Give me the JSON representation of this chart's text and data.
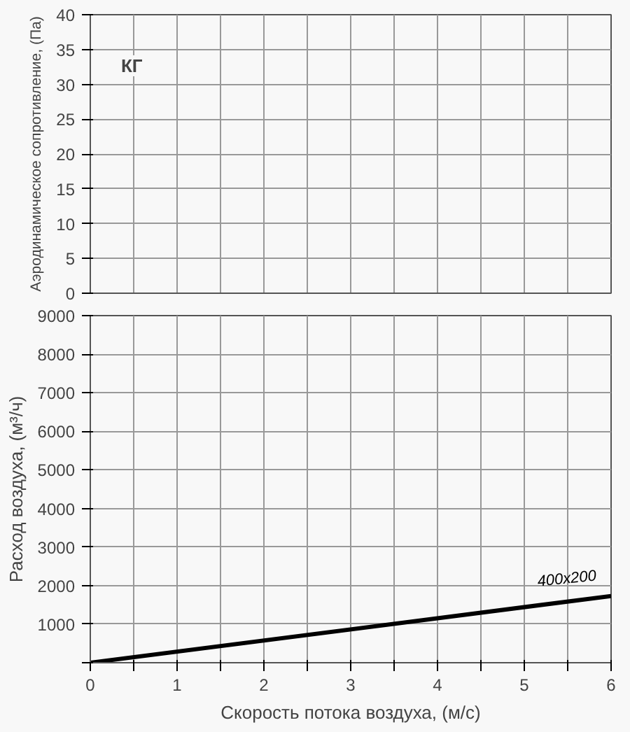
{
  "chart_data": [
    {
      "type": "line",
      "ylabel": "Аэродинамическое сопротивление, (Па)",
      "annotations": [
        "КГ"
      ],
      "xlim": [
        0,
        6
      ],
      "xticks": [
        0,
        {
          "value": 0.5,
          "label": null
        },
        1,
        {
          "value": 1.5,
          "label": null
        },
        2,
        {
          "value": 2.5,
          "label": null
        },
        3,
        {
          "value": 3.5,
          "label": null
        },
        4,
        {
          "value": 4.5,
          "label": null
        },
        5,
        {
          "value": 5.5,
          "label": null
        },
        6
      ],
      "ylim": [
        0,
        40
      ],
      "yticks": [
        0,
        5,
        10,
        15,
        20,
        25,
        30,
        35,
        40
      ],
      "grid": true,
      "tick_labels": "y"
    },
    {
      "type": "line",
      "xlabel": "Скорость потока воздуха, (м/с)",
      "ylabel": "Расход воздуха, (м³/ч)",
      "x": [
        0,
        6
      ],
      "series": [
        {
          "name": "400x200",
          "color": "#000000",
          "values": [
            0,
            1730
          ]
        }
      ],
      "xlim": [
        0,
        6
      ],
      "xticks": [
        0,
        {
          "value": 0.5,
          "label": null
        },
        1,
        {
          "value": 1.5,
          "label": null
        },
        2,
        {
          "value": 2.5,
          "label": null
        },
        3,
        {
          "value": 3.5,
          "label": null
        },
        4,
        {
          "value": 4.5,
          "label": null
        },
        5,
        {
          "value": 5.5,
          "label": null
        },
        6
      ],
      "ylim": [
        0,
        9000
      ],
      "yticks": [
        {
          "value": 0,
          "label": null
        },
        1000,
        2000,
        3000,
        4000,
        5000,
        6000,
        7000,
        8000,
        9000
      ],
      "grid": true
    }
  ]
}
